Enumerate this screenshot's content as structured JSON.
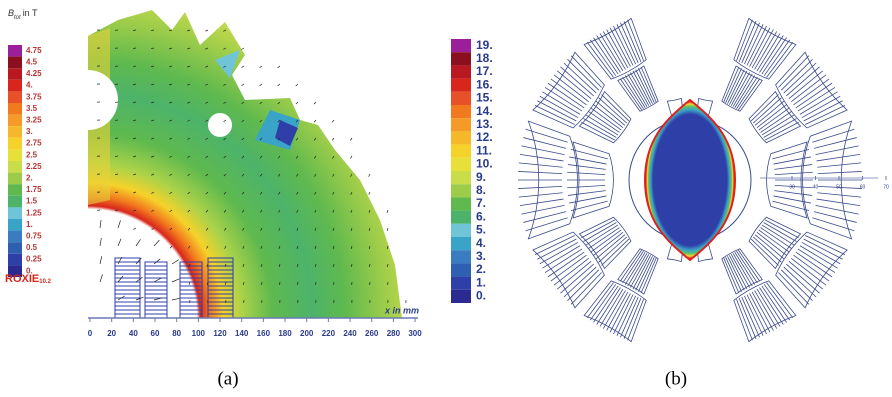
{
  "panel_a": {
    "colorbar_title": {
      "symbol": "B",
      "subscript": "tot",
      "unit_text": "in T"
    },
    "colorbar_labels": [
      "4.75",
      "4.5",
      "4.25",
      "4.",
      "3.75",
      "3.5",
      "3.25",
      "3.",
      "2.75",
      "2.5",
      "2.25",
      "2.",
      "1.75",
      "1.5",
      "1.25",
      "1.",
      "0.75",
      "0.5",
      "0.25",
      "0."
    ],
    "logo": {
      "name": "ROXIE",
      "version": "10.2"
    },
    "x_axis_label": "x in mm",
    "x_ticks": [
      "0",
      "20",
      "40",
      "60",
      "80",
      "100",
      "120",
      "140",
      "160",
      "180",
      "200",
      "220",
      "240",
      "260",
      "280",
      "300"
    ],
    "caption": "(a)"
  },
  "panel_b": {
    "colorbar_labels": [
      "19.",
      "18.",
      "17.",
      "16.",
      "15.",
      "14.",
      "13.",
      "12.",
      "11.",
      "10.",
      "9.",
      "8.",
      "7.",
      "6.",
      "5.",
      "4.",
      "3.",
      "2.",
      "1.",
      "0."
    ],
    "axis_ticks": [
      "30",
      "40",
      "50",
      "60",
      "70"
    ],
    "caption": "(b)"
  }
}
